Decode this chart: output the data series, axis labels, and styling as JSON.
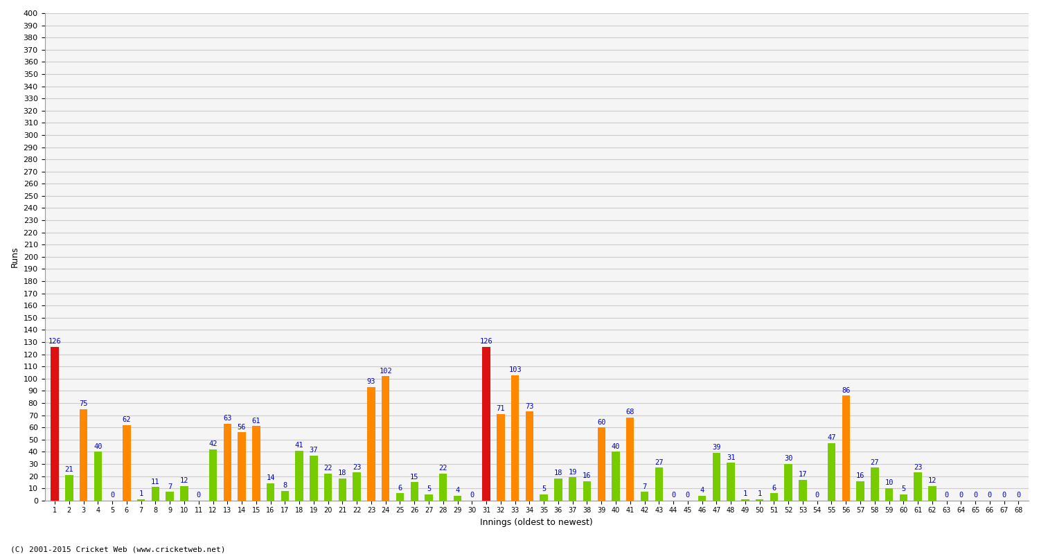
{
  "xlabel": "Innings (oldest to newest)",
  "ylabel": "Runs",
  "ylim": [
    0,
    400
  ],
  "background_color": "#ffffff",
  "plot_bg_color": "#f5f5f5",
  "grid_color": "#cccccc",
  "innings": [
    1,
    2,
    3,
    4,
    5,
    6,
    7,
    8,
    9,
    10,
    11,
    12,
    13,
    14,
    15,
    16,
    17,
    18,
    19,
    20,
    21,
    22,
    23,
    24,
    25,
    26,
    27,
    28,
    29,
    30,
    31,
    32,
    33,
    34,
    35,
    36,
    37,
    38,
    39,
    40,
    41,
    42,
    43,
    44,
    45,
    46,
    47,
    48,
    49,
    50,
    51,
    52,
    53,
    54,
    55,
    56,
    57,
    58,
    59,
    60,
    61,
    62,
    63,
    64,
    65,
    66,
    67,
    68
  ],
  "values": [
    126,
    21,
    75,
    40,
    0,
    62,
    1,
    11,
    7,
    12,
    0,
    42,
    63,
    56,
    61,
    14,
    8,
    41,
    37,
    22,
    18,
    23,
    93,
    102,
    6,
    15,
    5,
    22,
    4,
    0,
    126,
    71,
    103,
    73,
    5,
    18,
    19,
    16,
    60,
    40,
    68,
    7,
    27,
    0,
    0,
    4,
    39,
    31,
    1,
    1,
    6,
    30,
    17,
    0,
    47,
    86,
    16,
    27,
    10,
    5,
    23,
    12,
    0,
    0,
    0,
    0,
    0,
    0
  ],
  "colors": [
    "#dd1111",
    "#77cc00",
    "#ff8800",
    "#77cc00",
    "#77cc00",
    "#ff8800",
    "#77cc00",
    "#77cc00",
    "#77cc00",
    "#77cc00",
    "#77cc00",
    "#77cc00",
    "#ff8800",
    "#ff8800",
    "#ff8800",
    "#77cc00",
    "#77cc00",
    "#77cc00",
    "#77cc00",
    "#77cc00",
    "#77cc00",
    "#77cc00",
    "#ff8800",
    "#ff8800",
    "#77cc00",
    "#77cc00",
    "#77cc00",
    "#77cc00",
    "#77cc00",
    "#77cc00",
    "#dd1111",
    "#ff8800",
    "#ff8800",
    "#ff8800",
    "#77cc00",
    "#77cc00",
    "#77cc00",
    "#77cc00",
    "#ff8800",
    "#77cc00",
    "#ff8800",
    "#77cc00",
    "#77cc00",
    "#77cc00",
    "#77cc00",
    "#77cc00",
    "#77cc00",
    "#77cc00",
    "#77cc00",
    "#77cc00",
    "#77cc00",
    "#77cc00",
    "#77cc00",
    "#77cc00",
    "#77cc00",
    "#ff8800",
    "#77cc00",
    "#77cc00",
    "#77cc00",
    "#77cc00",
    "#77cc00",
    "#77cc00",
    "#77cc00",
    "#77cc00",
    "#77cc00",
    "#77cc00",
    "#77cc00",
    "#77cc00"
  ],
  "label_color": "#0000cc",
  "label_fontsize": 7.5,
  "axis_tick_fontsize": 8,
  "xlabel_fontsize": 9,
  "ylabel_fontsize": 9,
  "footer": "(C) 2001-2015 Cricket Web (www.cricketweb.net)",
  "footer_fontsize": 8
}
